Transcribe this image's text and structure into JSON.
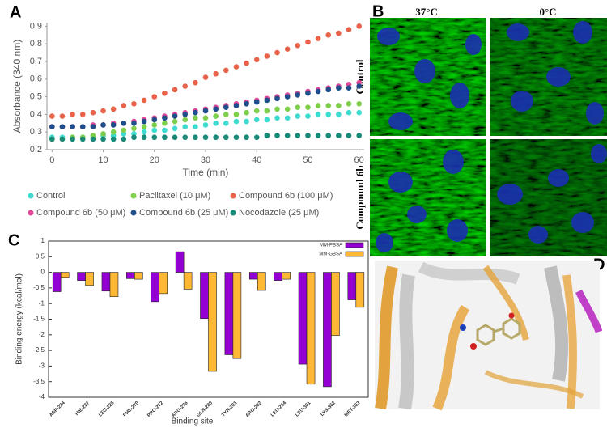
{
  "figure": {
    "panel_labels": [
      "A",
      "B",
      "C",
      "D"
    ],
    "panel_b": {
      "columns": [
        "37°C",
        "0°C"
      ],
      "rows": [
        "Control",
        "Compound 6b"
      ]
    }
  },
  "chart_data": [
    {
      "type": "line",
      "xlabel": "Time (min)",
      "ylabel": "Absorbance (340 nm)",
      "x": [
        0,
        2,
        4,
        6,
        8,
        10,
        12,
        14,
        16,
        18,
        20,
        22,
        24,
        26,
        28,
        30,
        32,
        34,
        36,
        38,
        40,
        42,
        44,
        46,
        48,
        50,
        52,
        54,
        56,
        58,
        60
      ],
      "xlim": [
        -1,
        61
      ],
      "xticks": [
        0,
        10,
        20,
        30,
        40,
        50,
        60
      ],
      "ylim": [
        0.2,
        0.92
      ],
      "yticks": [
        {
          "value": 0.2,
          "label": "0,2"
        },
        {
          "value": 0.3,
          "label": "0,3"
        },
        {
          "value": 0.4,
          "label": "0,4"
        },
        {
          "value": 0.5,
          "label": "0,5"
        },
        {
          "value": 0.6,
          "label": "0,6"
        },
        {
          "value": 0.7,
          "label": "0,7"
        },
        {
          "value": 0.8,
          "label": "0,8"
        },
        {
          "value": 0.9,
          "label": "0,9"
        }
      ],
      "series": [
        {
          "name": "Control",
          "color": "#3ddbd0",
          "values": [
            0.27,
            0.27,
            0.27,
            0.27,
            0.27,
            0.28,
            0.28,
            0.29,
            0.29,
            0.3,
            0.31,
            0.31,
            0.32,
            0.33,
            0.33,
            0.34,
            0.35,
            0.35,
            0.36,
            0.36,
            0.37,
            0.37,
            0.38,
            0.38,
            0.39,
            0.39,
            0.4,
            0.4,
            0.4,
            0.41,
            0.41
          ]
        },
        {
          "name": "Paclitaxel (10 μM)",
          "color": "#7dcf4b",
          "values": [
            0.26,
            0.26,
            0.27,
            0.27,
            0.28,
            0.29,
            0.3,
            0.31,
            0.32,
            0.33,
            0.34,
            0.35,
            0.36,
            0.37,
            0.38,
            0.38,
            0.39,
            0.4,
            0.4,
            0.41,
            0.42,
            0.42,
            0.43,
            0.43,
            0.44,
            0.44,
            0.45,
            0.45,
            0.45,
            0.46,
            0.46
          ]
        },
        {
          "name": "Compound 6b (100 μM)",
          "color": "#e8634a",
          "values": [
            0.39,
            0.39,
            0.4,
            0.4,
            0.41,
            0.42,
            0.43,
            0.45,
            0.46,
            0.48,
            0.5,
            0.52,
            0.54,
            0.56,
            0.58,
            0.61,
            0.63,
            0.65,
            0.67,
            0.69,
            0.71,
            0.73,
            0.75,
            0.77,
            0.79,
            0.81,
            0.83,
            0.85,
            0.86,
            0.88,
            0.9
          ]
        },
        {
          "name": "Compound 6b (50 μM)",
          "color": "#e0489a",
          "values": [
            0.33,
            0.33,
            0.33,
            0.33,
            0.34,
            0.34,
            0.35,
            0.35,
            0.36,
            0.37,
            0.38,
            0.39,
            0.4,
            0.41,
            0.42,
            0.43,
            0.44,
            0.45,
            0.46,
            0.47,
            0.48,
            0.49,
            0.5,
            0.51,
            0.52,
            0.53,
            0.54,
            0.55,
            0.56,
            0.57,
            0.58
          ]
        },
        {
          "name": "Compound 6b (25 μM)",
          "color": "#1f4e8c",
          "values": [
            0.33,
            0.33,
            0.33,
            0.33,
            0.33,
            0.34,
            0.34,
            0.35,
            0.35,
            0.36,
            0.37,
            0.38,
            0.39,
            0.4,
            0.41,
            0.42,
            0.43,
            0.44,
            0.45,
            0.46,
            0.47,
            0.48,
            0.49,
            0.5,
            0.51,
            0.52,
            0.53,
            0.54,
            0.55,
            0.55,
            0.56
          ]
        },
        {
          "name": "Nocodazole (25 μM)",
          "color": "#1a8a78",
          "values": [
            0.26,
            0.26,
            0.26,
            0.26,
            0.26,
            0.26,
            0.26,
            0.26,
            0.27,
            0.27,
            0.27,
            0.27,
            0.27,
            0.27,
            0.27,
            0.27,
            0.27,
            0.27,
            0.27,
            0.27,
            0.27,
            0.28,
            0.28,
            0.28,
            0.28,
            0.28,
            0.28,
            0.28,
            0.28,
            0.28,
            0.28
          ]
        }
      ]
    },
    {
      "type": "bar",
      "xlabel": "Binding site",
      "ylabel": "Binding energy (kcal/mol)",
      "categories": [
        "ASP-224",
        "HIE-227",
        "LEU-228",
        "PHE-270",
        "PRO-272",
        "ARG-276",
        "GLN-280",
        "TYR-281",
        "ARG-282",
        "LEU-284",
        "LEU-361",
        "LYS-362",
        "MET-363"
      ],
      "ylim": [
        -4,
        1
      ],
      "yticks": [
        1,
        {
          "value": 0.5,
          "label": "0,5"
        },
        0,
        {
          "value": -0.5,
          "label": "-0,5"
        },
        -1,
        {
          "value": -1.5,
          "label": "-1,5"
        },
        -2,
        {
          "value": -2.5,
          "label": "-2,5"
        },
        -3,
        {
          "value": -3.5,
          "label": "-3,5"
        },
        -4
      ],
      "series": [
        {
          "name": "MM-PBSA",
          "color": "#9400d3",
          "values": [
            -0.62,
            -0.26,
            -0.6,
            -0.2,
            -0.94,
            0.66,
            -1.48,
            -2.64,
            -0.22,
            -0.26,
            -2.94,
            -3.66,
            -0.88
          ]
        },
        {
          "name": "MM-GBSA",
          "color": "#ffb833",
          "values": [
            -0.16,
            -0.42,
            -0.78,
            -0.22,
            -0.68,
            -0.54,
            -3.17,
            -2.76,
            -0.58,
            -0.22,
            -3.58,
            -2.02,
            -1.12
          ]
        }
      ]
    }
  ]
}
